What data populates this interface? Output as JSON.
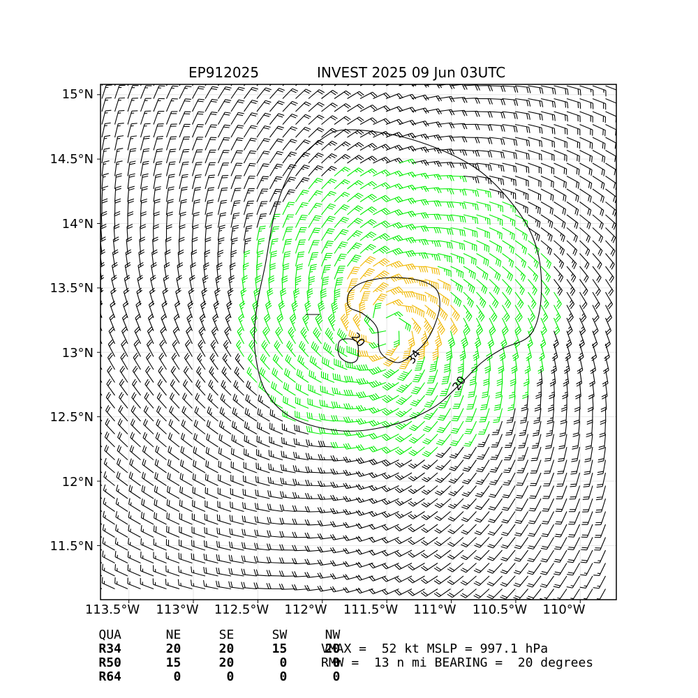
{
  "title": {
    "storm_id": "EP912025",
    "headline": "INVEST 2025 09 Jun 03UTC"
  },
  "colors": {
    "barb_default": "#000000",
    "barb_ts": "#00ee00",
    "barb_strong": "#f0b800",
    "contour": "#000000"
  },
  "map": {
    "lon_range": [
      -113.72,
      -109.72
    ],
    "lat_range": [
      11.08,
      15.08
    ],
    "lat_ticks": [
      "15°N",
      "14.5°N",
      "14°N",
      "13.5°N",
      "13°N",
      "12.5°N",
      "12°N",
      "11.5°N"
    ],
    "lon_ticks": [
      "113.5°W",
      "113°W",
      "112.5°W",
      "112°W",
      "111.5°W",
      "111°W",
      "110.5°W",
      "110°W"
    ],
    "center": {
      "lon": -111.5,
      "lat": 13.2
    },
    "contour_labels": [
      "20",
      "34",
      "20"
    ]
  },
  "wind_radii": {
    "header": [
      "QUA",
      "NE",
      "SE",
      "SW",
      "NW"
    ],
    "rows": [
      {
        "label": "R34",
        "values": [
          "20",
          "20",
          "15",
          "20"
        ]
      },
      {
        "label": "R50",
        "values": [
          "15",
          "20",
          "0",
          "0"
        ]
      },
      {
        "label": "R64",
        "values": [
          "0",
          "0",
          "0",
          "0"
        ]
      }
    ]
  },
  "summary": {
    "line1": "VMAX =  52 kt MSLP = 997.1 hPa",
    "line2": "RMW =  13 n mi BEARING =  20 degrees"
  }
}
